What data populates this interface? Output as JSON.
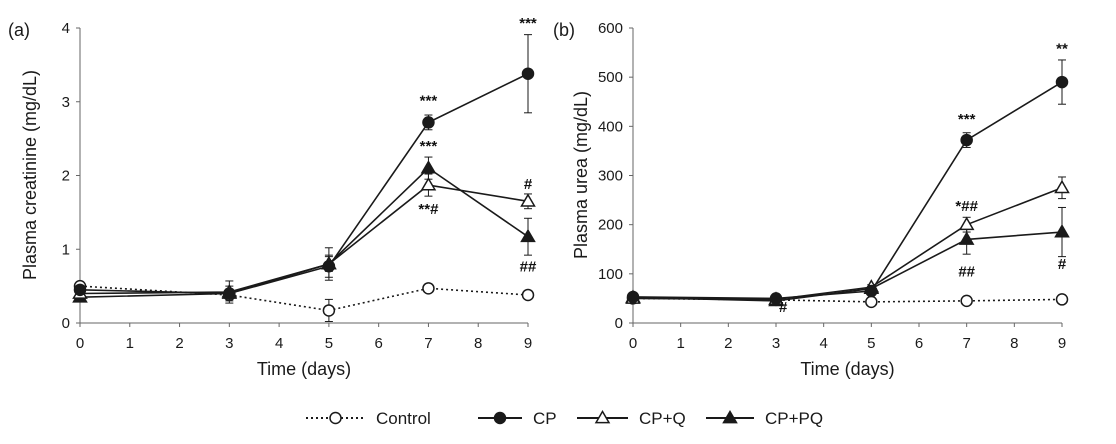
{
  "legend": [
    {
      "name": "Control",
      "marker": "open-circle",
      "dash": true
    },
    {
      "name": "CP",
      "marker": "filled-circle",
      "dash": false
    },
    {
      "name": "CP+Q",
      "marker": "open-triangle",
      "dash": false
    },
    {
      "name": "CP+PQ",
      "marker": "filled-triangle",
      "dash": false
    }
  ],
  "colors": {
    "line": "#1a1a1a",
    "axis": "#666666",
    "grid": "#d9d9d9",
    "background": "#ffffff"
  },
  "chart_data": [
    {
      "panel": "(a)",
      "type": "line",
      "xlabel": "Time (days)",
      "ylabel": "Plasma creatinine (mg/dL)",
      "xlim": [
        0,
        9
      ],
      "ylim": [
        0,
        4
      ],
      "xticks": [
        0,
        1,
        2,
        3,
        4,
        5,
        6,
        7,
        8,
        9
      ],
      "yticks": [
        0,
        1,
        2,
        3,
        4
      ],
      "x": [
        0,
        3,
        5,
        7,
        9
      ],
      "series": [
        {
          "name": "Control",
          "values": [
            0.5,
            0.38,
            0.17,
            0.47,
            0.38
          ],
          "errors": [
            0.05,
            0.04,
            0.15,
            0.04,
            0.04
          ]
        },
        {
          "name": "CP",
          "values": [
            0.45,
            0.4,
            0.77,
            2.72,
            3.38
          ],
          "errors": [
            0.05,
            0.06,
            0.15,
            0.1,
            0.53
          ]
        },
        {
          "name": "CP+Q",
          "values": [
            0.4,
            0.42,
            0.8,
            1.87,
            1.65
          ],
          "errors": [
            0.05,
            0.15,
            0.22,
            0.15,
            0.1
          ]
        },
        {
          "name": "CP+PQ",
          "values": [
            0.35,
            0.4,
            0.8,
            2.1,
            1.17
          ],
          "errors": [
            0.05,
            0.1,
            0.1,
            0.15,
            0.25
          ]
        }
      ],
      "annotations": [
        {
          "text": "***",
          "x": 9,
          "y": 4.0
        },
        {
          "text": "***",
          "x": 7,
          "y": 2.95
        },
        {
          "text": "***",
          "x": 7,
          "y": 2.33
        },
        {
          "text": "#",
          "x": 9,
          "y": 1.82
        },
        {
          "text": "**#",
          "x": 7,
          "y": 1.48
        },
        {
          "text": "##",
          "x": 9,
          "y": 0.7
        }
      ]
    },
    {
      "panel": "(b)",
      "type": "line",
      "xlabel": "Time (days)",
      "ylabel": "Plasma urea (mg/dL)",
      "xlim": [
        0,
        9
      ],
      "ylim": [
        0,
        600
      ],
      "xticks": [
        0,
        1,
        2,
        3,
        4,
        5,
        6,
        7,
        8,
        9
      ],
      "yticks": [
        0,
        100,
        200,
        300,
        400,
        500,
        600
      ],
      "x": [
        0,
        3,
        5,
        7,
        9
      ],
      "series": [
        {
          "name": "Control",
          "values": [
            50,
            47,
            43,
            45,
            48
          ],
          "errors": [
            3,
            3,
            3,
            3,
            3
          ]
        },
        {
          "name": "CP",
          "values": [
            53,
            50,
            65,
            372,
            490
          ],
          "errors": [
            4,
            4,
            5,
            15,
            45
          ]
        },
        {
          "name": "CP+Q",
          "values": [
            50,
            48,
            73,
            200,
            275
          ],
          "errors": [
            4,
            4,
            5,
            15,
            22
          ]
        },
        {
          "name": "CP+PQ",
          "values": [
            52,
            45,
            70,
            170,
            185
          ],
          "errors": [
            4,
            4,
            5,
            30,
            50
          ]
        }
      ],
      "annotations": [
        {
          "text": "**",
          "x": 9,
          "y": 548
        },
        {
          "text": "***",
          "x": 7,
          "y": 405
        },
        {
          "text": "*##",
          "x": 7,
          "y": 228
        },
        {
          "text": "#",
          "x": 3.15,
          "y": 22
        },
        {
          "text": "##",
          "x": 7,
          "y": 95
        },
        {
          "text": "#",
          "x": 9,
          "y": 110
        }
      ]
    }
  ]
}
